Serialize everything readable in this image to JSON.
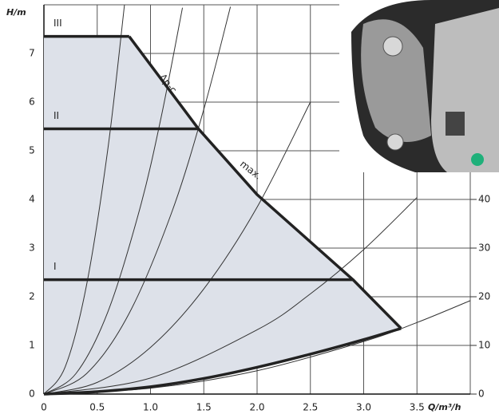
{
  "chart_data": {
    "type": "line",
    "x_label": "Q/m³/h",
    "y_label": "H/m",
    "xlim": [
      0,
      4
    ],
    "xticks": [
      0,
      0.5,
      {
        "value": 1,
        "label": "1.0"
      },
      1.5,
      {
        "value": 2,
        "label": "2.0"
      },
      2.5,
      {
        "value": 3,
        "label": "3.0"
      },
      3.5
    ],
    "ylim": [
      0,
      8
    ],
    "yticks": [
      0,
      1,
      2,
      3,
      4,
      5,
      6,
      7
    ],
    "y2lim": [
      0,
      80
    ],
    "y2ticks": [
      0,
      10,
      20,
      30,
      40
    ],
    "grid": true,
    "fill_color": "#dde1e9",
    "thin_color": "#333333",
    "series": [
      {
        "label": "III",
        "color": "#222222",
        "x": [
          0,
          0.8
        ],
        "values": [
          7.35,
          7.35
        ]
      },
      {
        "label": "II",
        "color": "#222222",
        "x": [
          0,
          1.45
        ],
        "values": [
          5.45,
          5.45
        ]
      },
      {
        "label": "I",
        "color": "#222222",
        "x": [
          0,
          2.9
        ],
        "values": [
          2.35,
          2.35
        ]
      },
      {
        "label": "max.",
        "color": "#222222",
        "x": [
          0.8,
          1.45,
          2.0,
          2.9,
          3.35
        ],
        "values": [
          7.35,
          5.45,
          4.1,
          2.35,
          1.35
        ]
      },
      {
        "color": "#222222",
        "x": [
          0,
          0.5,
          1,
          1.5,
          2,
          2.5,
          3,
          3.35
        ],
        "values": [
          0,
          0.05,
          0.15,
          0.32,
          0.55,
          0.82,
          1.12,
          1.35
        ]
      }
    ],
    "annotations": [
      "Δp-c"
    ],
    "system_curves": [
      {
        "x": [
          0,
          0.2,
          0.4,
          0.6,
          0.756
        ],
        "values": [
          0,
          0.56,
          2.24,
          5.04,
          8.0
        ]
      },
      {
        "x": [
          0,
          0.3,
          0.6,
          0.9,
          1.1,
          1.3
        ],
        "values": [
          0,
          0.42,
          1.69,
          3.81,
          5.69,
          7.94
        ]
      },
      {
        "x": [
          0,
          0.4,
          0.8,
          1.2,
          1.5,
          1.75
        ],
        "values": [
          0,
          0.42,
          1.66,
          3.74,
          5.85,
          7.96
        ]
      },
      {
        "x": [
          0,
          0.5,
          1,
          1.5,
          2,
          2.5
        ],
        "values": [
          0,
          0.24,
          0.96,
          2.16,
          3.84,
          6.0
        ]
      },
      {
        "x": [
          0,
          1,
          2,
          2.5,
          3,
          3.5
        ],
        "values": [
          0,
          0.33,
          1.32,
          2.06,
          2.97,
          4.04
        ]
      },
      {
        "x": [
          0,
          1,
          2,
          3,
          3.5,
          4
        ],
        "values": [
          0,
          0.12,
          0.48,
          1.08,
          1.47,
          1.92
        ]
      }
    ]
  }
}
